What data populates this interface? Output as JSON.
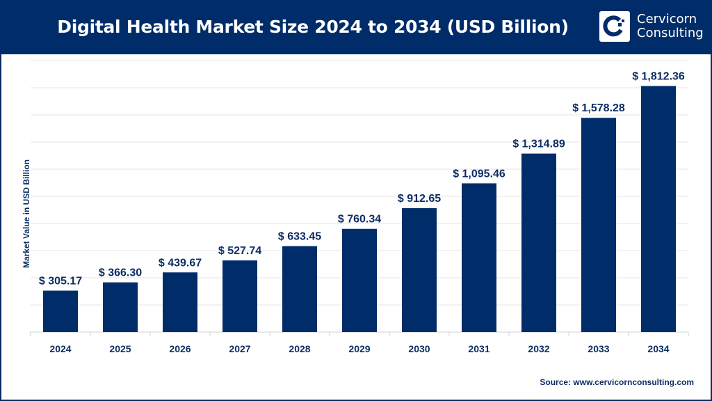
{
  "header": {
    "title": "Digital Health Market Size 2024 to 2034 (USD Billion)",
    "logo_line1": "Cervicorn",
    "logo_line2": "Consulting"
  },
  "source": "Source: www.cervicornconsulting.com",
  "colors": {
    "bar": "#002d6a",
    "header": "#002d6a",
    "text": "#0c2d63",
    "grid": "#e6e6e6"
  },
  "chart_data": {
    "type": "bar",
    "title": "Digital Health Market Size 2024 to 2034 (USD Billion)",
    "xlabel": "",
    "ylabel": "Market Value in USD Billion",
    "ylim": [
      0,
      2000
    ],
    "grid": true,
    "categories": [
      "2024",
      "2025",
      "2026",
      "2027",
      "2028",
      "2029",
      "2030",
      "2031",
      "2032",
      "2033",
      "2034"
    ],
    "values": [
      305.17,
      366.3,
      439.67,
      527.74,
      633.45,
      760.34,
      912.65,
      1095.46,
      1314.89,
      1578.28,
      1812.36
    ],
    "data_labels": [
      "$ 305.17",
      "$ 366.30",
      "$ 439.67",
      "$ 527.74",
      "$ 633.45",
      "$ 760.34",
      "$ 912.65",
      "$ 1,095.46",
      "$ 1,314.89",
      "$ 1,578.28",
      "$ 1,812.36"
    ]
  }
}
